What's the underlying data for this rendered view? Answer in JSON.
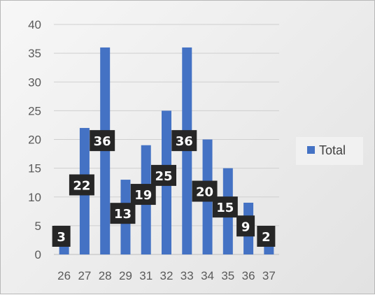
{
  "chart_data": {
    "type": "bar",
    "categories": [
      "26",
      "27",
      "28",
      "29",
      "31",
      "32",
      "33",
      "34",
      "35",
      "36",
      "37"
    ],
    "series": [
      {
        "name": "Total",
        "values": [
          3,
          22,
          36,
          13,
          19,
          25,
          36,
          20,
          15,
          9,
          2
        ],
        "color": "#4472c4"
      }
    ],
    "y_ticks": [
      "0",
      "5",
      "10",
      "15",
      "20",
      "25",
      "30",
      "35",
      "40"
    ],
    "ylim": [
      0,
      40
    ],
    "grid": true,
    "legend_position": "right",
    "data_label_style": {
      "background": "#262626",
      "text_color": "#ffffff"
    }
  }
}
